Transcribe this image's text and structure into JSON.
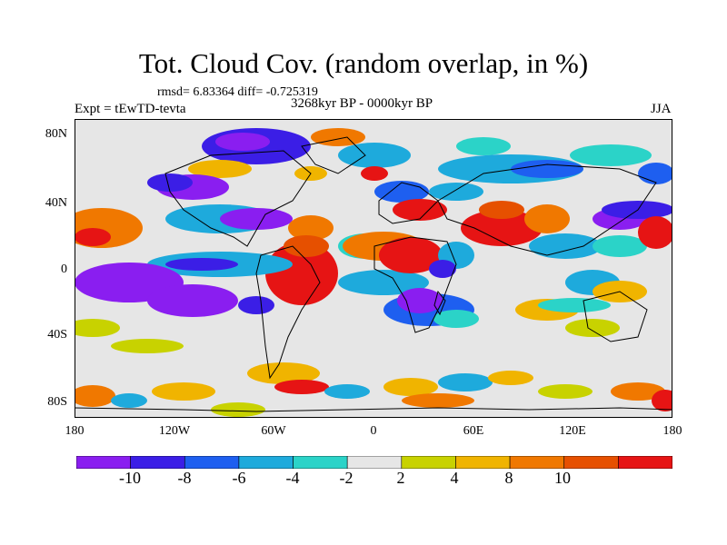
{
  "title": "Tot. Cloud Cov. (random overlap, in %)",
  "stats": "rmsd= 6.83364 diff= -0.725319",
  "experiment": "Expt = tEwTD-tevta",
  "period": "3268kyr BP - 0000kyr BP",
  "season": "JJA",
  "lat_labels": [
    "80N",
    "40N",
    "0",
    "40S",
    "80S"
  ],
  "lon_labels": [
    "180",
    "120W",
    "60W",
    "0",
    "60E",
    "120E",
    "180"
  ],
  "colorbar": {
    "labels": [
      "-10",
      "-8",
      "-6",
      "-4",
      "-2",
      "2",
      "4",
      "8",
      "10"
    ],
    "colors": [
      "#8a1ef0",
      "#3b1ee6",
      "#1e5ff0",
      "#1eaadc",
      "#2bd3c8",
      "#e6e6e6",
      "#c8d200",
      "#f0b400",
      "#f07800",
      "#e65000",
      "#e61414"
    ]
  },
  "palette": {
    "ocean_neutral": "#e6e6e6",
    "coastline": "#000000"
  }
}
